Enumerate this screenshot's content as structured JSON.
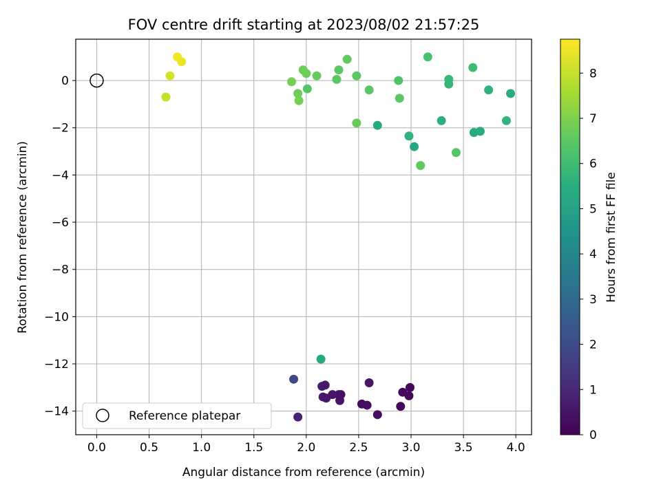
{
  "chart_data": {
    "type": "scatter",
    "title": "FOV centre drift starting at 2023/08/02 21:57:25",
    "xlabel": "Angular distance from reference (arcmin)",
    "ylabel": "Rotation from reference (arcmin)",
    "xlim": [
      -0.2,
      4.15
    ],
    "ylim": [
      -15.0,
      1.75
    ],
    "xticks": [
      0.0,
      0.5,
      1.0,
      1.5,
      2.0,
      2.5,
      3.0,
      3.5,
      4.0
    ],
    "xtick_labels": [
      "0.0",
      "0.5",
      "1.0",
      "1.5",
      "2.0",
      "2.5",
      "3.0",
      "3.5",
      "4.0"
    ],
    "yticks": [
      0,
      -2,
      -4,
      -6,
      -8,
      -10,
      -12,
      -14
    ],
    "ytick_labels": [
      "0",
      "−2",
      "−4",
      "−6",
      "−8",
      "−10",
      "−12",
      "−14"
    ],
    "grid": true,
    "legend": {
      "position": "lower-left",
      "entries": [
        "Reference platepar"
      ]
    },
    "colorbar": {
      "label": "Hours from first FF file",
      "colormap": "viridis",
      "range": [
        0,
        8.75
      ],
      "ticks": [
        0,
        1,
        2,
        3,
        4,
        5,
        6,
        7,
        8
      ],
      "tick_labels": [
        "0",
        "1",
        "2",
        "3",
        "4",
        "5",
        "6",
        "7",
        "8"
      ]
    },
    "reference_point": {
      "x": 0.0,
      "y": 0.0,
      "name": "Reference platepar"
    },
    "points": [
      {
        "x": 0.77,
        "y": 1.0,
        "h": 8.6
      },
      {
        "x": 0.81,
        "y": 0.8,
        "h": 8.5
      },
      {
        "x": 0.7,
        "y": 0.2,
        "h": 8.2
      },
      {
        "x": 0.66,
        "y": -0.7,
        "h": 8.0
      },
      {
        "x": 1.86,
        "y": -0.05,
        "h": 6.9
      },
      {
        "x": 1.92,
        "y": -0.55,
        "h": 6.8
      },
      {
        "x": 1.93,
        "y": -0.85,
        "h": 6.9
      },
      {
        "x": 1.97,
        "y": 0.45,
        "h": 6.8
      },
      {
        "x": 2.0,
        "y": 0.3,
        "h": 6.8
      },
      {
        "x": 2.01,
        "y": -0.35,
        "h": 6.4
      },
      {
        "x": 2.1,
        "y": 0.2,
        "h": 6.7
      },
      {
        "x": 2.29,
        "y": 0.05,
        "h": 6.5
      },
      {
        "x": 2.31,
        "y": 0.45,
        "h": 6.5
      },
      {
        "x": 2.39,
        "y": 0.9,
        "h": 6.6
      },
      {
        "x": 2.48,
        "y": 0.2,
        "h": 6.5
      },
      {
        "x": 2.48,
        "y": -1.8,
        "h": 6.7
      },
      {
        "x": 2.6,
        "y": -0.4,
        "h": 6.5
      },
      {
        "x": 2.68,
        "y": -1.9,
        "h": 5.3
      },
      {
        "x": 2.88,
        "y": 0.0,
        "h": 6.3
      },
      {
        "x": 2.89,
        "y": -0.75,
        "h": 6.5
      },
      {
        "x": 2.98,
        "y": -2.35,
        "h": 5.6
      },
      {
        "x": 3.03,
        "y": -2.8,
        "h": 5.2
      },
      {
        "x": 3.09,
        "y": -3.6,
        "h": 6.6
      },
      {
        "x": 3.16,
        "y": 1.0,
        "h": 6.2
      },
      {
        "x": 3.29,
        "y": -1.7,
        "h": 5.5
      },
      {
        "x": 3.36,
        "y": 0.05,
        "h": 5.9
      },
      {
        "x": 3.36,
        "y": -0.15,
        "h": 5.8
      },
      {
        "x": 3.43,
        "y": -3.05,
        "h": 6.4
      },
      {
        "x": 3.59,
        "y": 0.55,
        "h": 6.0
      },
      {
        "x": 3.6,
        "y": -2.2,
        "h": 5.3
      },
      {
        "x": 3.66,
        "y": -2.15,
        "h": 5.4
      },
      {
        "x": 3.74,
        "y": -0.4,
        "h": 5.6
      },
      {
        "x": 3.91,
        "y": -1.7,
        "h": 5.7
      },
      {
        "x": 3.95,
        "y": -0.55,
        "h": 5.4
      },
      {
        "x": 2.14,
        "y": -11.8,
        "h": 5.3
      },
      {
        "x": 1.88,
        "y": -12.65,
        "h": 1.9
      },
      {
        "x": 1.92,
        "y": -14.25,
        "h": 0.8
      },
      {
        "x": 2.15,
        "y": -12.95,
        "h": 0.7
      },
      {
        "x": 2.18,
        "y": -12.9,
        "h": 0.6
      },
      {
        "x": 2.16,
        "y": -13.4,
        "h": 0.6
      },
      {
        "x": 2.19,
        "y": -13.45,
        "h": 0.5
      },
      {
        "x": 2.25,
        "y": -13.3,
        "h": 0.5
      },
      {
        "x": 2.31,
        "y": -13.3,
        "h": 0.5
      },
      {
        "x": 2.32,
        "y": -13.55,
        "h": 0.5
      },
      {
        "x": 2.33,
        "y": -13.3,
        "h": 0.4
      },
      {
        "x": 2.53,
        "y": -13.7,
        "h": 0.3
      },
      {
        "x": 2.58,
        "y": -13.75,
        "h": 0.3
      },
      {
        "x": 2.6,
        "y": -12.8,
        "h": 0.5
      },
      {
        "x": 2.68,
        "y": -14.15,
        "h": 0.3
      },
      {
        "x": 2.9,
        "y": -13.8,
        "h": 0.2
      },
      {
        "x": 2.92,
        "y": -13.2,
        "h": 0.2
      },
      {
        "x": 2.99,
        "y": -13.0,
        "h": 0.2
      },
      {
        "x": 2.98,
        "y": -13.35,
        "h": 0.2
      }
    ]
  }
}
